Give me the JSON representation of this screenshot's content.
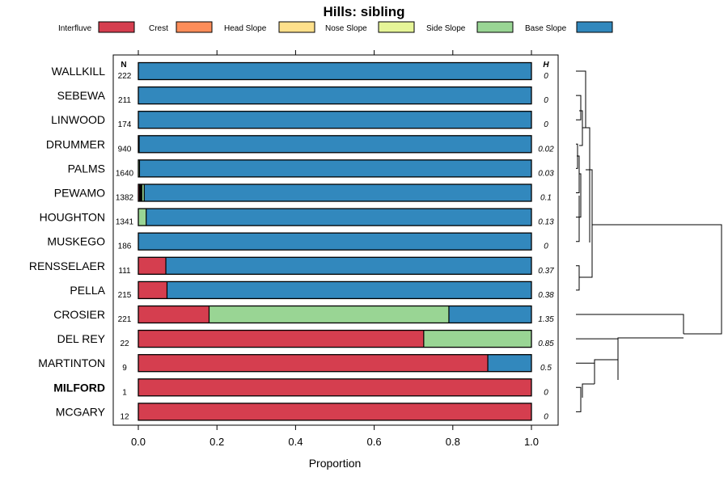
{
  "chart_data": {
    "type": "bar",
    "orientation": "horizontal",
    "stacked": true,
    "title": "Hills: sibling",
    "xlabel": "Proportion",
    "xlim": [
      0,
      1
    ],
    "x_ticks": [
      "0.0",
      "0.2",
      "0.4",
      "0.6",
      "0.8",
      "1.0"
    ],
    "n_header": "N",
    "h_header": "H",
    "highlight": "MILFORD",
    "legend": [
      {
        "name": "Interfluve",
        "color": "#d53e4f"
      },
      {
        "name": "Crest",
        "color": "#fc8d59"
      },
      {
        "name": "Head Slope",
        "color": "#fee08b"
      },
      {
        "name": "Nose Slope",
        "color": "#e6f598"
      },
      {
        "name": "Side Slope",
        "color": "#99d594"
      },
      {
        "name": "Base Slope",
        "color": "#3288bd"
      }
    ],
    "categories": [
      "WALLKILL",
      "SEBEWA",
      "LINWOOD",
      "DRUMMER",
      "PALMS",
      "PEWAMO",
      "HOUGHTON",
      "MUSKEGO",
      "RENSSELAER",
      "PELLA",
      "CROSIER",
      "DEL REY",
      "MARTINTON",
      "MILFORD",
      "MCGARY"
    ],
    "n": [
      "222",
      "211",
      "174",
      "940",
      "1640",
      "1382",
      "1341",
      "186",
      "111",
      "215",
      "221",
      "22",
      "9",
      "1",
      "12"
    ],
    "h": [
      "0",
      "0",
      "0",
      "0.02",
      "0.03",
      "0.1",
      "0.13",
      "0",
      "0.37",
      "0.38",
      "1.35",
      "0.85",
      "0.5",
      "0",
      "0"
    ],
    "series": [
      {
        "name": "Interfluve",
        "values": [
          0,
          0,
          0,
          0,
          0,
          0.003,
          0,
          0,
          0.07,
          0.073,
          0.18,
          0.726,
          0.889,
          1,
          1
        ]
      },
      {
        "name": "Crest",
        "values": [
          0,
          0,
          0,
          0,
          0,
          0.002,
          0,
          0,
          0,
          0,
          0,
          0,
          0,
          0,
          0
        ]
      },
      {
        "name": "Head Slope",
        "values": [
          0,
          0,
          0,
          0,
          0,
          0.002,
          0,
          0,
          0,
          0,
          0,
          0,
          0,
          0,
          0
        ]
      },
      {
        "name": "Nose Slope",
        "values": [
          0,
          0,
          0,
          0,
          0,
          0.002,
          0,
          0,
          0,
          0,
          0,
          0,
          0,
          0,
          0
        ]
      },
      {
        "name": "Side Slope",
        "values": [
          0,
          0,
          0,
          0.002,
          0.003,
          0.006,
          0.02,
          0,
          0,
          0,
          0.61,
          0.274,
          0,
          0,
          0
        ]
      },
      {
        "name": "Base Slope",
        "values": [
          1,
          1,
          1,
          0.998,
          0.997,
          0.985,
          0.98,
          1,
          0.93,
          0.927,
          0.21,
          0,
          0.111,
          0,
          0
        ]
      }
    ]
  }
}
